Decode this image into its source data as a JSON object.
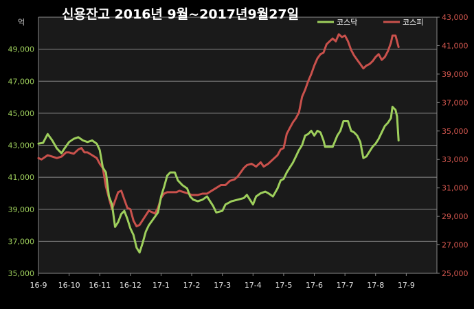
{
  "chart_data": {
    "type": "line",
    "title": "신용잔고 2016년 9월~2017년9월27일",
    "unit_left": "억",
    "x_categories": [
      "16-9",
      "16-10",
      "16-11",
      "16-12",
      "17-1",
      "17-2",
      "17-3",
      "17-4",
      "17-5",
      "17-6",
      "17-7",
      "17-8",
      "17-9"
    ],
    "y_left": {
      "min": 35000,
      "max": 51000,
      "ticks": [
        "35,000",
        "37,000",
        "39,000",
        "41,000",
        "43,000",
        "45,000",
        "47,000",
        "49,000"
      ]
    },
    "y_right": {
      "min": 25000,
      "max": 43000,
      "ticks": [
        "25,000",
        "27,000",
        "29,000",
        "31,000",
        "33,000",
        "35,000",
        "37,000",
        "39,000",
        "41,000",
        "43,000"
      ]
    },
    "grid": true,
    "legend_position": "top-right",
    "colors": {
      "kosdaq": "#9ecf5c",
      "kospi": "#c9514c",
      "plot_bg": "#1a1a1a",
      "grid": "#8a8a8a"
    },
    "series": [
      {
        "name": "코스닥",
        "axis": "left",
        "color": "#9ecf5c",
        "points": [
          [
            0.0,
            43100
          ],
          [
            0.15,
            43150
          ],
          [
            0.3,
            43700
          ],
          [
            0.45,
            43300
          ],
          [
            0.6,
            42800
          ],
          [
            0.75,
            42500
          ],
          [
            0.85,
            42800
          ],
          [
            1.0,
            43200
          ],
          [
            1.15,
            43400
          ],
          [
            1.3,
            43500
          ],
          [
            1.45,
            43300
          ],
          [
            1.6,
            43200
          ],
          [
            1.75,
            43300
          ],
          [
            1.9,
            43100
          ],
          [
            2.0,
            42700
          ],
          [
            2.1,
            41600
          ],
          [
            2.2,
            41300
          ],
          [
            2.3,
            39800
          ],
          [
            2.4,
            39300
          ],
          [
            2.5,
            37900
          ],
          [
            2.6,
            38200
          ],
          [
            2.7,
            38700
          ],
          [
            2.8,
            38900
          ],
          [
            2.9,
            38400
          ],
          [
            3.0,
            37800
          ],
          [
            3.1,
            37400
          ],
          [
            3.2,
            36600
          ],
          [
            3.3,
            36300
          ],
          [
            3.4,
            36900
          ],
          [
            3.5,
            37600
          ],
          [
            3.6,
            38000
          ],
          [
            3.75,
            38400
          ],
          [
            3.9,
            38800
          ],
          [
            4.0,
            39800
          ],
          [
            4.1,
            40400
          ],
          [
            4.2,
            41100
          ],
          [
            4.3,
            41300
          ],
          [
            4.45,
            41300
          ],
          [
            4.55,
            40800
          ],
          [
            4.7,
            40500
          ],
          [
            4.85,
            40300
          ],
          [
            4.95,
            39800
          ],
          [
            5.05,
            39600
          ],
          [
            5.2,
            39500
          ],
          [
            5.35,
            39600
          ],
          [
            5.5,
            39800
          ],
          [
            5.6,
            39500
          ],
          [
            5.7,
            39200
          ],
          [
            5.8,
            38800
          ],
          [
            6.0,
            38900
          ],
          [
            6.1,
            39300
          ],
          [
            6.3,
            39500
          ],
          [
            6.5,
            39600
          ],
          [
            6.7,
            39700
          ],
          [
            6.8,
            39900
          ],
          [
            6.9,
            39600
          ],
          [
            7.0,
            39300
          ],
          [
            7.1,
            39800
          ],
          [
            7.25,
            40000
          ],
          [
            7.4,
            40100
          ],
          [
            7.5,
            40000
          ],
          [
            7.65,
            39800
          ],
          [
            7.8,
            40300
          ],
          [
            7.9,
            40800
          ],
          [
            8.0,
            40900
          ],
          [
            8.1,
            41300
          ],
          [
            8.2,
            41600
          ],
          [
            8.3,
            41900
          ],
          [
            8.4,
            42300
          ],
          [
            8.5,
            42700
          ],
          [
            8.6,
            43000
          ],
          [
            8.7,
            43600
          ],
          [
            8.8,
            43700
          ],
          [
            8.9,
            43900
          ],
          [
            9.0,
            43600
          ],
          [
            9.1,
            43900
          ],
          [
            9.2,
            43800
          ],
          [
            9.3,
            43300
          ],
          [
            9.35,
            42900
          ],
          [
            9.5,
            42900
          ],
          [
            9.6,
            42900
          ],
          [
            9.75,
            43600
          ],
          [
            9.85,
            43900
          ],
          [
            9.95,
            44500
          ],
          [
            10.1,
            44500
          ],
          [
            10.2,
            43900
          ],
          [
            10.3,
            43800
          ],
          [
            10.4,
            43600
          ],
          [
            10.5,
            43200
          ],
          [
            10.6,
            42200
          ],
          [
            10.7,
            42300
          ],
          [
            10.8,
            42600
          ],
          [
            10.9,
            42900
          ],
          [
            11.0,
            43100
          ],
          [
            11.1,
            43400
          ],
          [
            11.2,
            43800
          ],
          [
            11.3,
            44200
          ],
          [
            11.4,
            44400
          ],
          [
            11.5,
            44700
          ],
          [
            11.55,
            45400
          ],
          [
            11.65,
            45200
          ],
          [
            11.7,
            44800
          ],
          [
            11.75,
            43300
          ]
        ]
      },
      {
        "name": "코스피",
        "axis": "right",
        "color": "#c9514c",
        "points": [
          [
            0.0,
            33100
          ],
          [
            0.1,
            33000
          ],
          [
            0.3,
            33300
          ],
          [
            0.45,
            33200
          ],
          [
            0.6,
            33100
          ],
          [
            0.75,
            33200
          ],
          [
            0.9,
            33500
          ],
          [
            1.0,
            33500
          ],
          [
            1.15,
            33400
          ],
          [
            1.3,
            33700
          ],
          [
            1.4,
            33800
          ],
          [
            1.5,
            33500
          ],
          [
            1.6,
            33500
          ],
          [
            1.75,
            33300
          ],
          [
            1.9,
            33100
          ],
          [
            2.0,
            32700
          ],
          [
            2.1,
            32400
          ],
          [
            2.2,
            31100
          ],
          [
            2.3,
            30300
          ],
          [
            2.4,
            29500
          ],
          [
            2.5,
            30100
          ],
          [
            2.6,
            30700
          ],
          [
            2.7,
            30800
          ],
          [
            2.8,
            30200
          ],
          [
            2.9,
            29600
          ],
          [
            3.0,
            29500
          ],
          [
            3.1,
            28700
          ],
          [
            3.2,
            28300
          ],
          [
            3.3,
            28400
          ],
          [
            3.45,
            28900
          ],
          [
            3.6,
            29400
          ],
          [
            3.7,
            29300
          ],
          [
            3.8,
            29200
          ],
          [
            3.9,
            29600
          ],
          [
            4.0,
            30300
          ],
          [
            4.1,
            30600
          ],
          [
            4.2,
            30700
          ],
          [
            4.35,
            30700
          ],
          [
            4.5,
            30700
          ],
          [
            4.6,
            30800
          ],
          [
            4.75,
            30700
          ],
          [
            4.9,
            30600
          ],
          [
            5.0,
            30500
          ],
          [
            5.2,
            30500
          ],
          [
            5.35,
            30600
          ],
          [
            5.5,
            30600
          ],
          [
            5.65,
            30800
          ],
          [
            5.8,
            31000
          ],
          [
            5.95,
            31200
          ],
          [
            6.1,
            31200
          ],
          [
            6.25,
            31500
          ],
          [
            6.4,
            31600
          ],
          [
            6.5,
            31800
          ],
          [
            6.6,
            32100
          ],
          [
            6.7,
            32400
          ],
          [
            6.8,
            32600
          ],
          [
            6.95,
            32700
          ],
          [
            7.1,
            32500
          ],
          [
            7.25,
            32800
          ],
          [
            7.35,
            32500
          ],
          [
            7.5,
            32700
          ],
          [
            7.65,
            33000
          ],
          [
            7.8,
            33300
          ],
          [
            7.9,
            33700
          ],
          [
            8.0,
            33800
          ],
          [
            8.1,
            34800
          ],
          [
            8.2,
            35200
          ],
          [
            8.3,
            35600
          ],
          [
            8.4,
            35900
          ],
          [
            8.5,
            36300
          ],
          [
            8.6,
            37400
          ],
          [
            8.7,
            37900
          ],
          [
            8.8,
            38500
          ],
          [
            8.9,
            39000
          ],
          [
            9.0,
            39600
          ],
          [
            9.1,
            40100
          ],
          [
            9.2,
            40400
          ],
          [
            9.3,
            40500
          ],
          [
            9.4,
            41100
          ],
          [
            9.5,
            41300
          ],
          [
            9.6,
            41500
          ],
          [
            9.7,
            41300
          ],
          [
            9.8,
            41800
          ],
          [
            9.9,
            41600
          ],
          [
            10.0,
            41700
          ],
          [
            10.1,
            41300
          ],
          [
            10.2,
            40700
          ],
          [
            10.3,
            40300
          ],
          [
            10.4,
            40000
          ],
          [
            10.5,
            39700
          ],
          [
            10.6,
            39400
          ],
          [
            10.7,
            39600
          ],
          [
            10.8,
            39700
          ],
          [
            10.9,
            39900
          ],
          [
            11.0,
            40200
          ],
          [
            11.1,
            40400
          ],
          [
            11.2,
            40000
          ],
          [
            11.3,
            40200
          ],
          [
            11.4,
            40600
          ],
          [
            11.5,
            41200
          ],
          [
            11.55,
            41700
          ],
          [
            11.65,
            41700
          ],
          [
            11.75,
            40900
          ]
        ]
      }
    ]
  }
}
